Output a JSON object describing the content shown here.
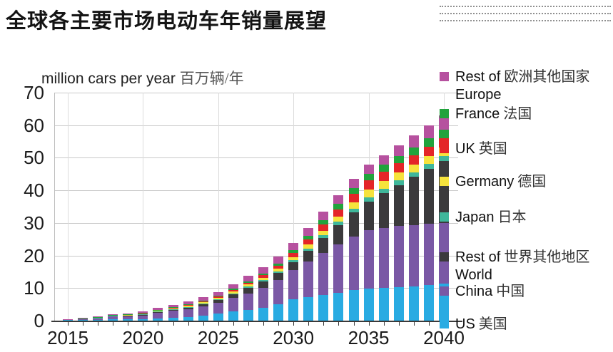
{
  "title": "全球各主要市场电动车年销量展望",
  "unit_label": {
    "en": "million cars per year",
    "zh": "百万辆/年"
  },
  "chart_data": {
    "type": "bar",
    "stacked": true,
    "title": "全球各主要市场电动车年销量展望",
    "ylabel": "million cars per year 百万辆/年",
    "ylim": [
      0,
      70
    ],
    "y_ticks": [
      0,
      10,
      20,
      30,
      40,
      50,
      60,
      70
    ],
    "grid": true,
    "legend_position": "right",
    "x": [
      2015,
      2016,
      2017,
      2018,
      2019,
      2020,
      2021,
      2022,
      2023,
      2024,
      2025,
      2026,
      2027,
      2028,
      2029,
      2030,
      2031,
      2032,
      2033,
      2034,
      2035,
      2036,
      2037,
      2038,
      2039,
      2040
    ],
    "x_tick_labels": [
      "2015",
      "2020",
      "2025",
      "2030",
      "2035",
      "2040"
    ],
    "series": [
      {
        "name": "US",
        "name_zh": "美国",
        "legend_line1": "US",
        "legend_line2": "",
        "color": "#29ABE2",
        "values": [
          0.12,
          0.16,
          0.2,
          0.35,
          0.33,
          0.35,
          0.65,
          0.9,
          1.1,
          1.6,
          2.2,
          2.8,
          3.3,
          4.0,
          5.0,
          6.5,
          7.2,
          7.9,
          8.6,
          9.3,
          9.8,
          10.0,
          10.2,
          10.5,
          10.9,
          11.3
        ]
      },
      {
        "name": "China",
        "name_zh": "中国",
        "legend_line1": "China",
        "legend_line2": "",
        "color": "#7A58A5",
        "values": [
          0.21,
          0.34,
          0.58,
          1.0,
          1.06,
          1.2,
          1.7,
          2.1,
          2.4,
          2.8,
          3.3,
          4.1,
          5.1,
          6.1,
          7.4,
          9.0,
          10.9,
          12.8,
          14.7,
          16.5,
          18.0,
          18.5,
          18.8,
          18.9,
          18.9,
          18.7
        ]
      },
      {
        "name": "Rest of World",
        "name_zh": "世界其他地区",
        "legend_line1": "Rest of",
        "legend_line2": "World",
        "color": "#3B3A3C",
        "values": [
          0.05,
          0.1,
          0.15,
          0.2,
          0.25,
          0.35,
          0.4,
          0.45,
          0.55,
          0.7,
          0.9,
          1.2,
          1.7,
          2.0,
          2.2,
          2.4,
          3.4,
          4.6,
          6.0,
          7.4,
          8.7,
          10.6,
          12.6,
          14.7,
          16.8,
          19.0
        ]
      },
      {
        "name": "Japan",
        "name_zh": "日本",
        "legend_line1": "Japan",
        "legend_line2": "",
        "color": "#3FB79B",
        "values": [
          0.02,
          0.02,
          0.05,
          0.05,
          0.05,
          0.08,
          0.1,
          0.1,
          0.15,
          0.15,
          0.2,
          0.3,
          0.35,
          0.4,
          0.5,
          0.6,
          0.7,
          0.85,
          1.0,
          1.2,
          1.4,
          1.45,
          1.5,
          1.5,
          1.5,
          1.5
        ]
      },
      {
        "name": "Germany",
        "name_zh": "德国",
        "legend_line1": "Germany",
        "legend_line2": "",
        "color": "#F6E33D",
        "values": [
          0.02,
          0.03,
          0.05,
          0.07,
          0.1,
          0.15,
          0.2,
          0.25,
          0.3,
          0.35,
          0.4,
          0.5,
          0.6,
          0.7,
          0.8,
          0.95,
          1.1,
          1.4,
          1.7,
          2.0,
          2.3,
          2.3,
          2.3,
          2.3,
          2.4,
          2.6
        ]
      },
      {
        "name": "UK",
        "name_zh": "英国",
        "legend_line1": "UK",
        "legend_line2": "",
        "color": "#E42528",
        "values": [
          0.03,
          0.04,
          0.05,
          0.06,
          0.08,
          0.12,
          0.15,
          0.2,
          0.25,
          0.3,
          0.35,
          0.45,
          0.55,
          0.7,
          0.9,
          1.3,
          1.6,
          1.9,
          2.2,
          2.5,
          2.8,
          2.9,
          2.9,
          2.9,
          2.9,
          2.9
        ]
      },
      {
        "name": "France",
        "name_zh": "法国",
        "legend_line1": "France",
        "legend_line2": "",
        "color": "#21A33C",
        "values": [
          0.02,
          0.03,
          0.04,
          0.05,
          0.07,
          0.1,
          0.12,
          0.15,
          0.2,
          0.25,
          0.3,
          0.4,
          0.5,
          0.6,
          0.8,
          1.0,
          1.2,
          1.4,
          1.6,
          1.8,
          2.0,
          2.1,
          2.2,
          2.3,
          2.5,
          2.7
        ]
      },
      {
        "name": "Rest of Europe",
        "name_zh": "欧洲其他国家",
        "legend_line1": "Rest of",
        "legend_line2": "Europe",
        "color": "#B6519F",
        "values": [
          0.05,
          0.08,
          0.12,
          0.2,
          0.3,
          0.45,
          0.55,
          0.7,
          0.85,
          1.0,
          1.1,
          1.4,
          1.6,
          1.8,
          2.0,
          2.2,
          2.4,
          2.6,
          2.7,
          2.8,
          2.8,
          3.0,
          3.3,
          3.7,
          4.0,
          4.2
        ]
      }
    ]
  }
}
